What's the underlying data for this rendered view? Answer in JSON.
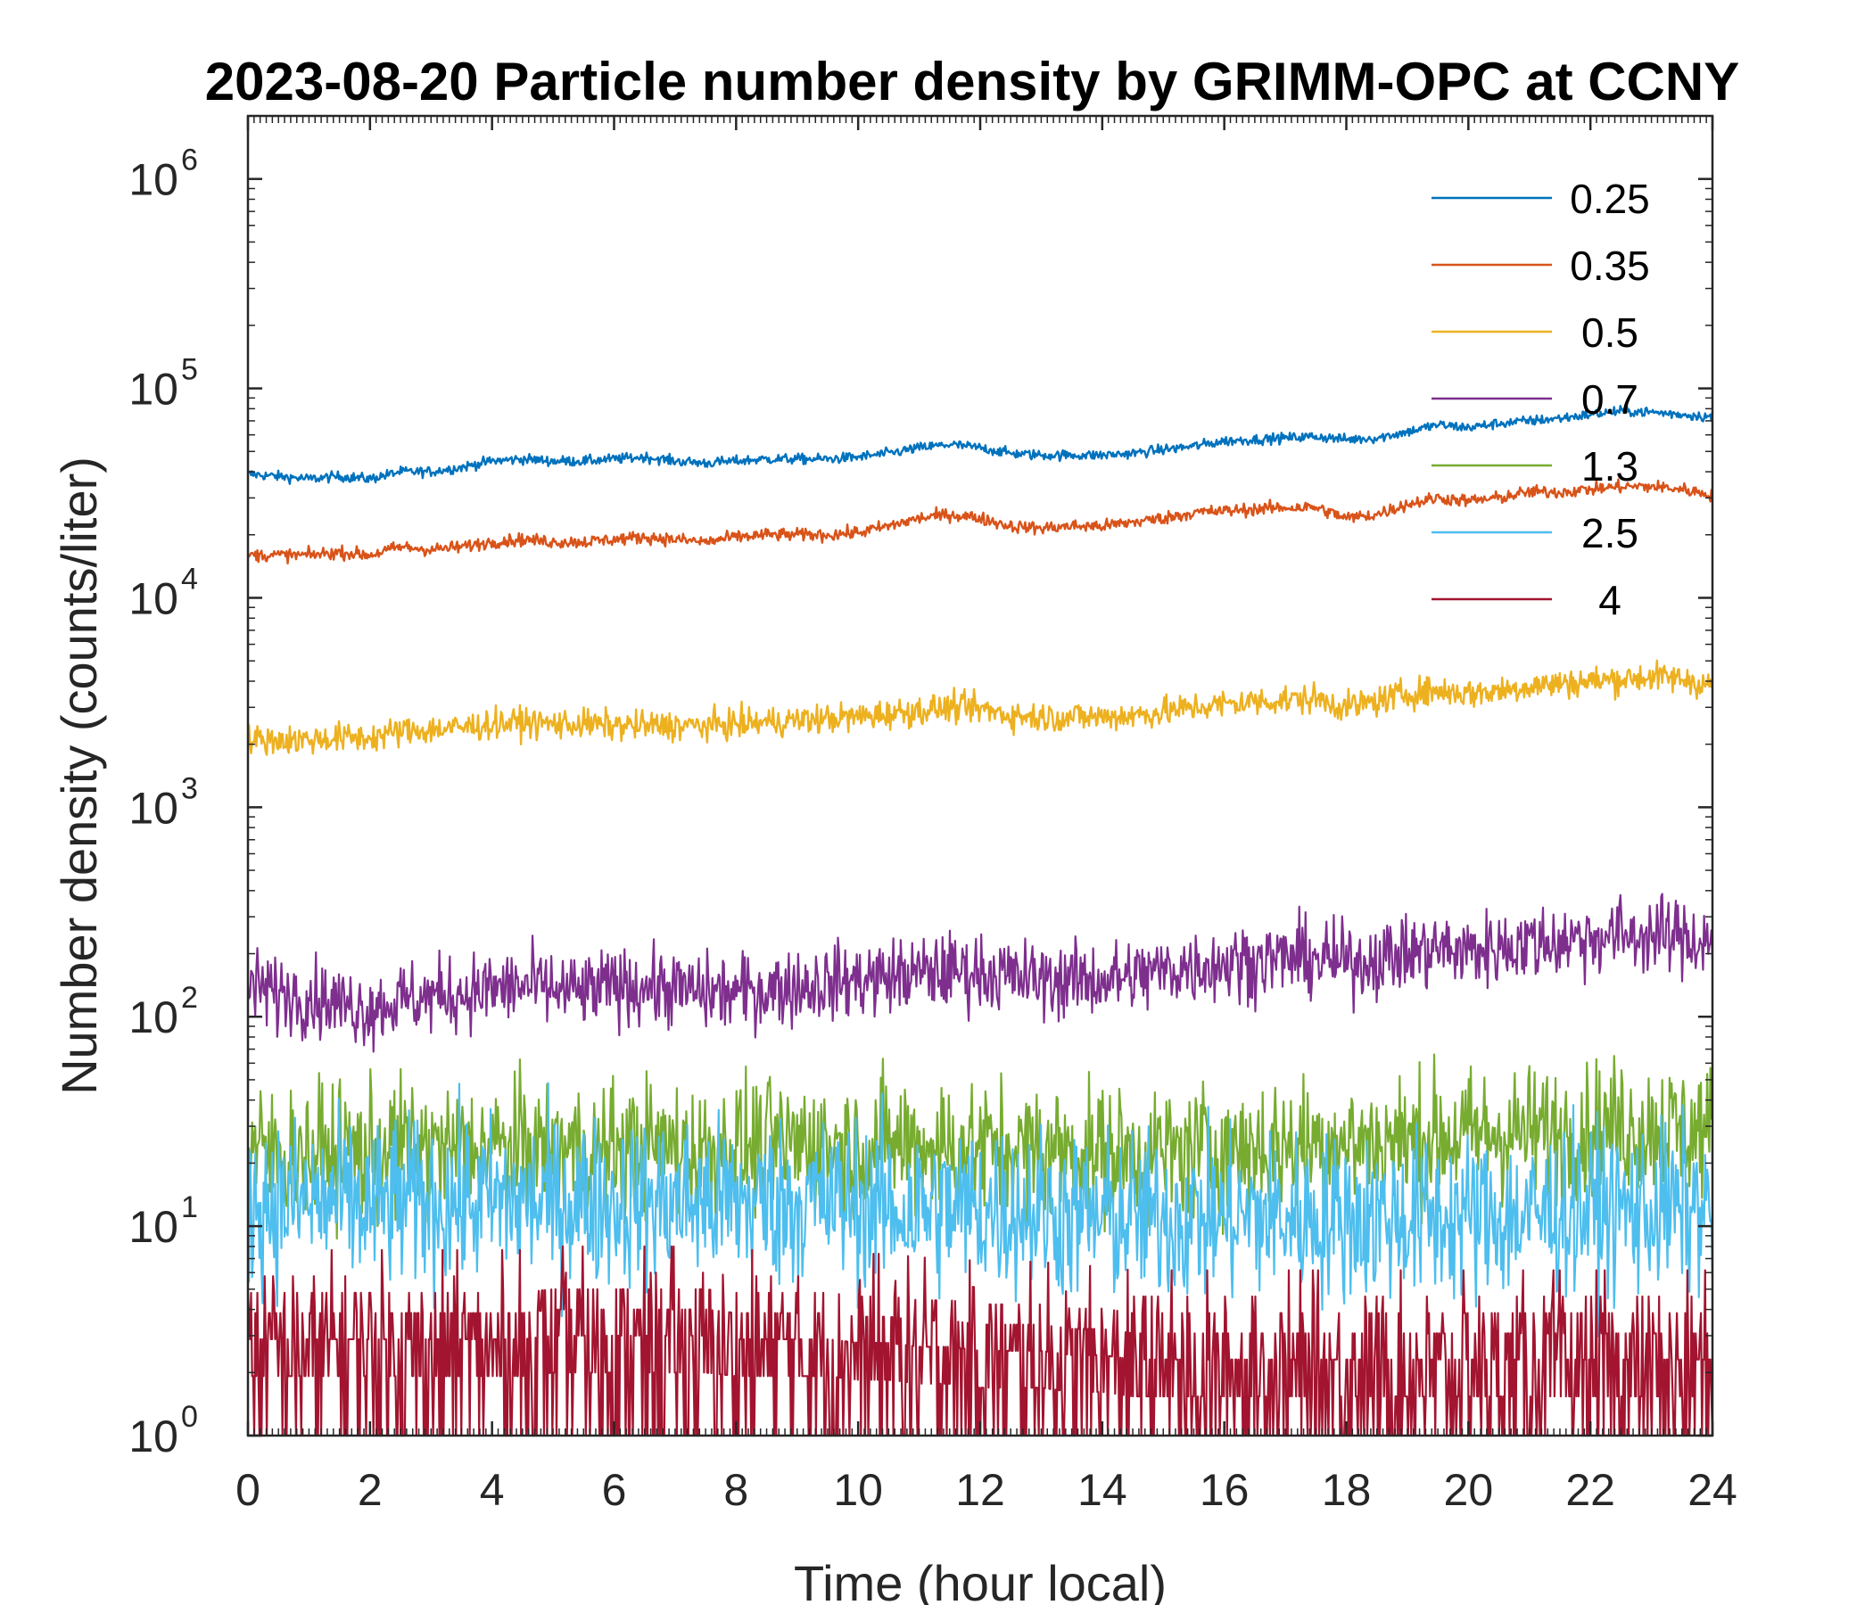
{
  "chart_data": {
    "type": "line",
    "title": "2023-08-20 Particle number density by GRIMM-OPC at CCNY",
    "xlabel": "Time (hour local)",
    "ylabel": "Number density (counts/liter)",
    "xlim": [
      0,
      24
    ],
    "ylim": [
      1,
      2000000
    ],
    "yscale": "log",
    "x_ticks": [
      "0",
      "2",
      "4",
      "6",
      "8",
      "10",
      "12",
      "14",
      "16",
      "18",
      "20",
      "22",
      "24"
    ],
    "y_ticks": [
      {
        "base": "10",
        "exp": "0"
      },
      {
        "base": "10",
        "exp": "1"
      },
      {
        "base": "10",
        "exp": "2"
      },
      {
        "base": "10",
        "exp": "3"
      },
      {
        "base": "10",
        "exp": "4"
      },
      {
        "base": "10",
        "exp": "5"
      },
      {
        "base": "10",
        "exp": "6"
      }
    ],
    "grid": false,
    "legend_position": "top-right",
    "x": [
      0,
      0.5,
      1,
      1.5,
      2,
      2.5,
      3,
      3.5,
      4,
      4.5,
      5,
      5.5,
      6,
      6.5,
      7,
      7.5,
      8,
      8.5,
      9,
      9.5,
      10,
      10.5,
      11,
      11.5,
      12,
      12.5,
      13,
      13.5,
      14,
      14.5,
      15,
      15.5,
      16,
      16.5,
      17,
      17.5,
      18,
      18.5,
      19,
      19.5,
      20,
      20.5,
      21,
      21.5,
      22,
      22.5,
      23,
      23.5,
      24
    ],
    "series": [
      {
        "name": "0.25",
        "color": "#0072BD",
        "values": [
          39000,
          38000,
          37000,
          38000,
          37000,
          40000,
          40000,
          42000,
          45000,
          46000,
          45000,
          45000,
          46000,
          47000,
          45000,
          44000,
          45000,
          46000,
          46000,
          46000,
          47000,
          49000,
          52000,
          54000,
          52000,
          49000,
          48000,
          48000,
          48000,
          49000,
          51000,
          53000,
          56000,
          57000,
          58000,
          59000,
          57000,
          58000,
          62000,
          67000,
          65000,
          68000,
          70000,
          72000,
          75000,
          78000,
          77000,
          75000,
          73000
        ]
      },
      {
        "name": "0.35",
        "color": "#D95319",
        "values": [
          16000,
          16000,
          16000,
          16500,
          16000,
          17500,
          17000,
          17500,
          18500,
          19000,
          18500,
          18500,
          19000,
          19500,
          19000,
          18500,
          19500,
          20000,
          20000,
          20000,
          20500,
          22000,
          24000,
          25000,
          24000,
          22000,
          21500,
          22000,
          22000,
          23000,
          24000,
          25500,
          26000,
          26500,
          27000,
          27000,
          24000,
          25000,
          28000,
          30000,
          29000,
          30000,
          32000,
          32000,
          33000,
          34000,
          34000,
          33000,
          31000
        ]
      },
      {
        "name": "0.5",
        "color": "#EDB120",
        "values": [
          2100,
          2100,
          2100,
          2150,
          2150,
          2300,
          2350,
          2400,
          2500,
          2550,
          2500,
          2500,
          2450,
          2450,
          2450,
          2450,
          2500,
          2550,
          2600,
          2650,
          2700,
          2800,
          2900,
          3000,
          2950,
          2750,
          2700,
          2700,
          2700,
          2750,
          2850,
          3000,
          3100,
          3200,
          3250,
          3300,
          3000,
          3200,
          3500,
          3600,
          3500,
          3600,
          3800,
          3900,
          4000,
          4100,
          4200,
          4100,
          3800
        ]
      },
      {
        "name": "0.7",
        "color": "#7E2F8E",
        "values": [
          140,
          130,
          125,
          115,
          110,
          120,
          125,
          130,
          135,
          140,
          135,
          130,
          140,
          140,
          135,
          130,
          130,
          135,
          140,
          145,
          150,
          155,
          160,
          165,
          165,
          155,
          150,
          150,
          150,
          155,
          165,
          175,
          180,
          185,
          190,
          190,
          180,
          190,
          200,
          210,
          205,
          215,
          225,
          230,
          240,
          245,
          245,
          240,
          225
        ]
      },
      {
        "name": "1.3",
        "color": "#77AC30",
        "values": [
          23,
          22,
          22,
          23,
          22,
          24,
          23,
          23,
          24,
          23,
          24,
          23,
          23,
          24,
          24,
          23,
          24,
          24,
          25,
          25,
          24,
          25,
          25,
          24,
          24,
          23,
          23,
          23,
          22,
          22,
          22,
          23,
          23,
          24,
          24,
          25,
          25,
          25,
          26,
          27,
          27,
          28,
          28,
          28,
          29,
          30,
          30,
          29,
          28
        ]
      },
      {
        "name": "2.5",
        "color": "#4DBEEE",
        "values": [
          13,
          13,
          13,
          13,
          12,
          13,
          13,
          13,
          13,
          13,
          13,
          13,
          13,
          13,
          13,
          13,
          13,
          13,
          13,
          13,
          13,
          12,
          12,
          12,
          12,
          12,
          12,
          11,
          11,
          11,
          11,
          11,
          11,
          11,
          11,
          11,
          11,
          11,
          11,
          11,
          11,
          11,
          11,
          12,
          12,
          12,
          12,
          12,
          12
        ]
      },
      {
        "name": "4",
        "color": "#A2142F",
        "values": [
          2.5,
          2.5,
          2.5,
          2.5,
          2.5,
          2.5,
          2.5,
          2.5,
          2.5,
          2.5,
          2.6,
          2.6,
          2.6,
          2.6,
          2.6,
          2.6,
          2.5,
          2.5,
          2.5,
          2.5,
          2.4,
          2.4,
          2.3,
          2.3,
          2.2,
          2.2,
          2.2,
          2.1,
          2.1,
          2.0,
          2.0,
          2.0,
          2.0,
          2.0,
          2.0,
          2.0,
          2.0,
          2.0,
          2.0,
          2.0,
          2.0,
          2.0,
          2.0,
          2.0,
          2.0,
          2.0,
          2.0,
          2.0,
          2.0
        ]
      }
    ]
  }
}
